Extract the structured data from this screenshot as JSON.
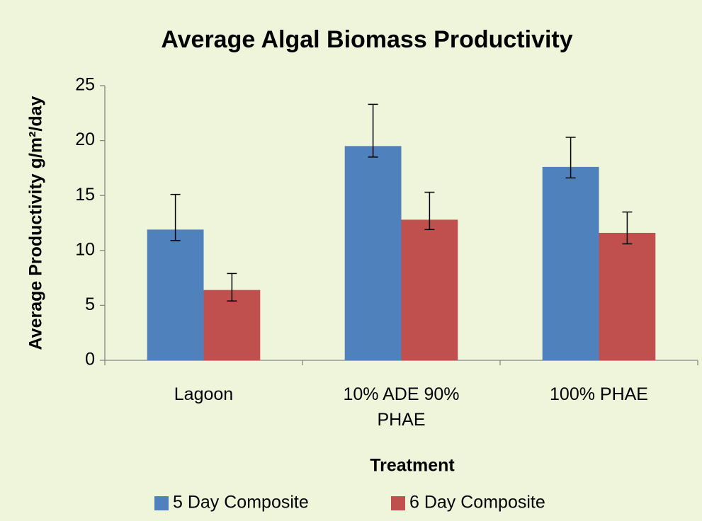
{
  "chart_data": {
    "type": "bar",
    "title": "Average Algal Biomass Productivity",
    "x_label": "Treatment",
    "y_label": "Average Productivity g/m²/day",
    "categories": [
      "Lagoon",
      "10% ADE 90% PHAE",
      "100% PHAE"
    ],
    "series": [
      {
        "name": "5 Day Composite",
        "color": "#4f81bd",
        "values": [
          11.9,
          19.5,
          17.6
        ],
        "error_plus": [
          3.2,
          3.8,
          2.7
        ],
        "error_minus": [
          1.0,
          1.0,
          1.0
        ]
      },
      {
        "name": "6 Day Composite",
        "color": "#c0504d",
        "values": [
          6.4,
          12.8,
          11.6
        ],
        "error_plus": [
          1.5,
          2.5,
          1.9
        ],
        "error_minus": [
          1.0,
          0.9,
          1.0
        ]
      }
    ],
    "ylim": [
      0,
      25
    ],
    "yticks": [
      0,
      5,
      10,
      15,
      20,
      25
    ],
    "legend": "bottom"
  }
}
